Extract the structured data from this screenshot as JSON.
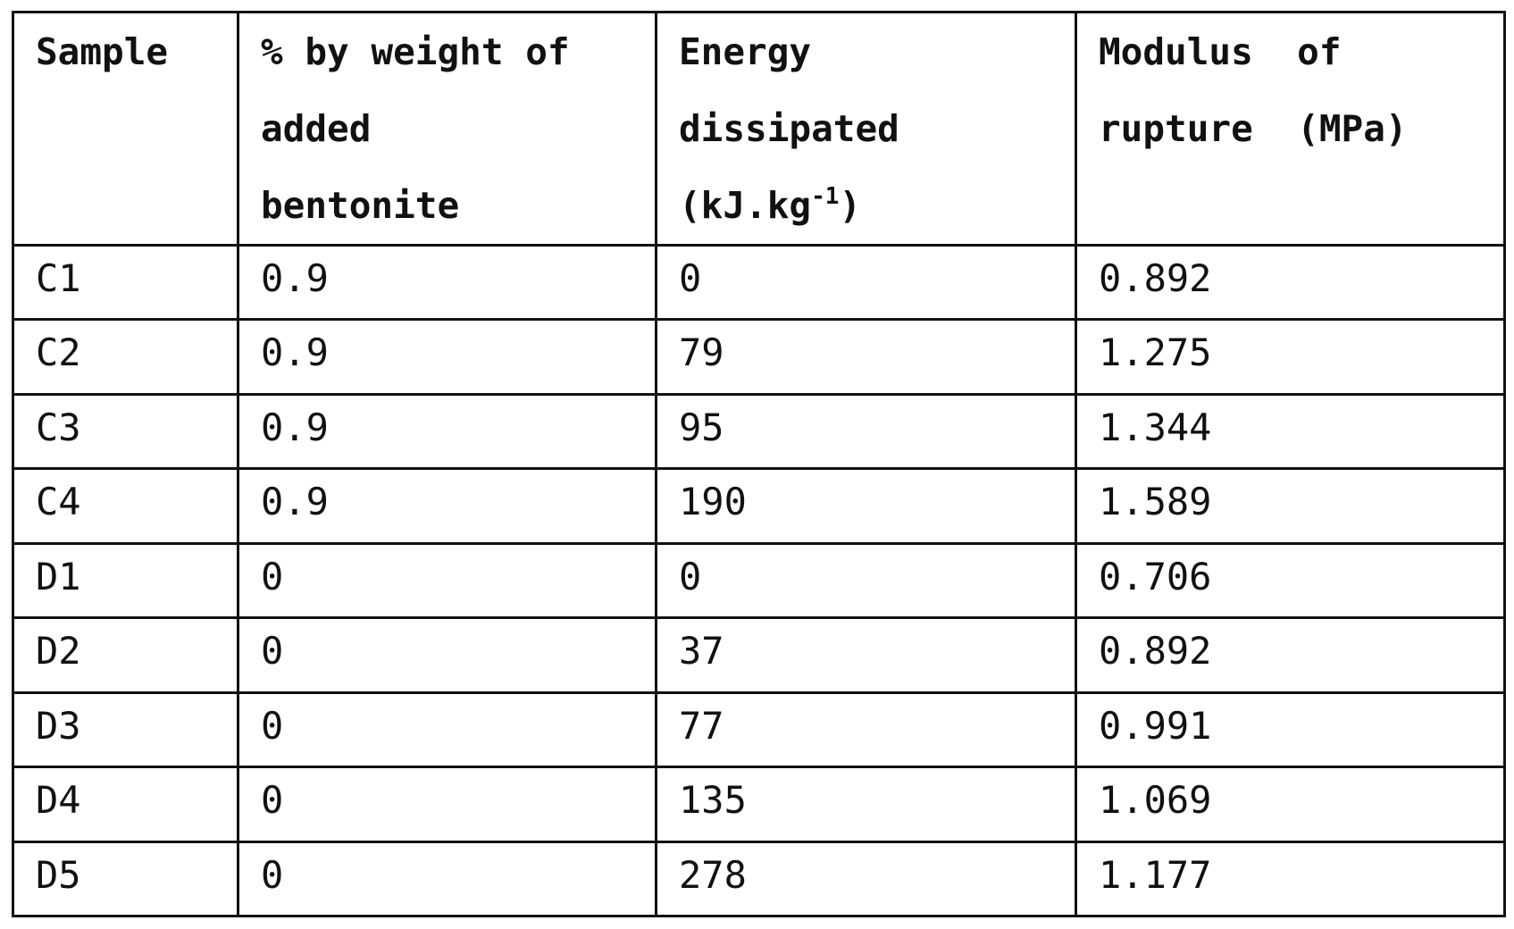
{
  "table": {
    "headers": {
      "sample": [
        "Sample"
      ],
      "bentonite": [
        "% by weight of",
        "added",
        "bentonite"
      ],
      "energy": [
        "Energy",
        "dissipated",
        "(kJ.kg",
        "-1",
        ")"
      ],
      "modulus": [
        "Modulus  of",
        "rupture  (MPa)"
      ]
    },
    "rows": [
      {
        "sample": "C1",
        "bentonite": "0.9",
        "energy": "0",
        "modulus": "0.892"
      },
      {
        "sample": "C2",
        "bentonite": "0.9",
        "energy": "79",
        "modulus": "1.275"
      },
      {
        "sample": "C3",
        "bentonite": "0.9",
        "energy": "95",
        "modulus": "1.344"
      },
      {
        "sample": "C4",
        "bentonite": "0.9",
        "energy": "190",
        "modulus": "1.589"
      },
      {
        "sample": "D1",
        "bentonite": "0",
        "energy": "0",
        "modulus": "0.706"
      },
      {
        "sample": "D2",
        "bentonite": "0",
        "energy": "37",
        "modulus": "0.892"
      },
      {
        "sample": "D3",
        "bentonite": "0",
        "energy": "77",
        "modulus": "0.991"
      },
      {
        "sample": "D4",
        "bentonite": "0",
        "energy": "135",
        "modulus": "1.069"
      },
      {
        "sample": "D5",
        "bentonite": "0",
        "energy": "278",
        "modulus": "1.177"
      }
    ]
  }
}
